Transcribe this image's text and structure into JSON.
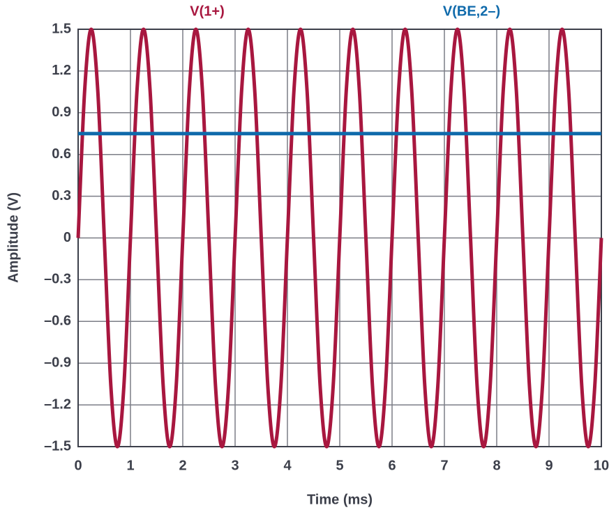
{
  "chart_data": {
    "type": "line",
    "xlabel": "Time (ms)",
    "ylabel": "Amplitude (V)",
    "xlim": [
      0,
      10
    ],
    "xticks": [
      0,
      1,
      2,
      3,
      4,
      5,
      6,
      7,
      8,
      9,
      10
    ],
    "ylim": [
      -1.5,
      1.5
    ],
    "yticks": [
      {
        "value": -1.5,
        "label": "–1.5"
      },
      {
        "value": -1.2,
        "label": "–1.2"
      },
      {
        "value": -0.9,
        "label": "–0.9"
      },
      {
        "value": -0.6,
        "label": "–0.6"
      },
      {
        "value": -0.3,
        "label": "–0.3"
      },
      0,
      0.3,
      0.6,
      0.9,
      1.2,
      1.5
    ],
    "grid": true,
    "series": [
      {
        "name": "V(1+)",
        "color": "#a8173f",
        "x": [
          0,
          0.125,
          0.25,
          0.375,
          0.5,
          0.625,
          0.75,
          0.875,
          1,
          1.125,
          1.25,
          1.375,
          1.5,
          1.625,
          1.75,
          1.875,
          2,
          2.125,
          2.25,
          2.375,
          2.5,
          2.625,
          2.75,
          2.875,
          3,
          3.125,
          3.25,
          3.375,
          3.5,
          3.625,
          3.75,
          3.875,
          4,
          4.125,
          4.25,
          4.375,
          4.5,
          4.625,
          4.75,
          4.875,
          5,
          5.125,
          5.25,
          5.375,
          5.5,
          5.625,
          5.75,
          5.875,
          6,
          6.125,
          6.25,
          6.375,
          6.5,
          6.625,
          6.75,
          6.875,
          7,
          7.125,
          7.25,
          7.375,
          7.5,
          7.625,
          7.75,
          7.875,
          8,
          8.125,
          8.25,
          8.375,
          8.5,
          8.625,
          8.75,
          8.875,
          9,
          9.125,
          9.25,
          9.375,
          9.5,
          9.625,
          9.75,
          9.875,
          10
        ],
        "values": [
          0,
          1.061,
          1.5,
          1.061,
          0,
          -1.061,
          -1.5,
          -1.061,
          0,
          1.061,
          1.5,
          1.061,
          0,
          -1.061,
          -1.5,
          -1.061,
          0,
          1.061,
          1.5,
          1.061,
          0,
          -1.061,
          -1.5,
          -1.061,
          0,
          1.061,
          1.5,
          1.061,
          0,
          -1.061,
          -1.5,
          -1.061,
          0,
          1.061,
          1.5,
          1.061,
          0,
          -1.061,
          -1.5,
          -1.061,
          0,
          1.061,
          1.5,
          1.061,
          0,
          -1.061,
          -1.5,
          -1.061,
          0,
          1.061,
          1.5,
          1.061,
          0,
          -1.061,
          -1.5,
          -1.061,
          0,
          1.061,
          1.5,
          1.061,
          0,
          -1.061,
          -1.5,
          -1.061,
          0,
          1.061,
          1.5,
          1.061,
          0,
          -1.061,
          -1.5,
          -1.061,
          0,
          1.061,
          1.5,
          1.061,
          0,
          -1.061,
          -1.5,
          -1.061,
          0
        ]
      },
      {
        "name": "V(BE,2–)",
        "color": "#0f6aab",
        "x": [
          0,
          10
        ],
        "values": [
          0.75,
          0.75
        ]
      }
    ]
  }
}
